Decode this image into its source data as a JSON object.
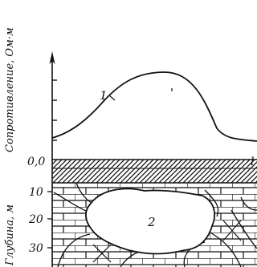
{
  "figure": {
    "top_axis_label": "Сопротивление, Ом·м",
    "bottom_axis_label": "Глубина, м",
    "zero_label": "0,0",
    "x_axis_letter": "l",
    "depth_ticks": [
      "10",
      "20",
      "30"
    ],
    "curve_label": "1",
    "cavity_label": "2",
    "colors": {
      "ink": "#111111",
      "background": "#ffffff"
    }
  }
}
